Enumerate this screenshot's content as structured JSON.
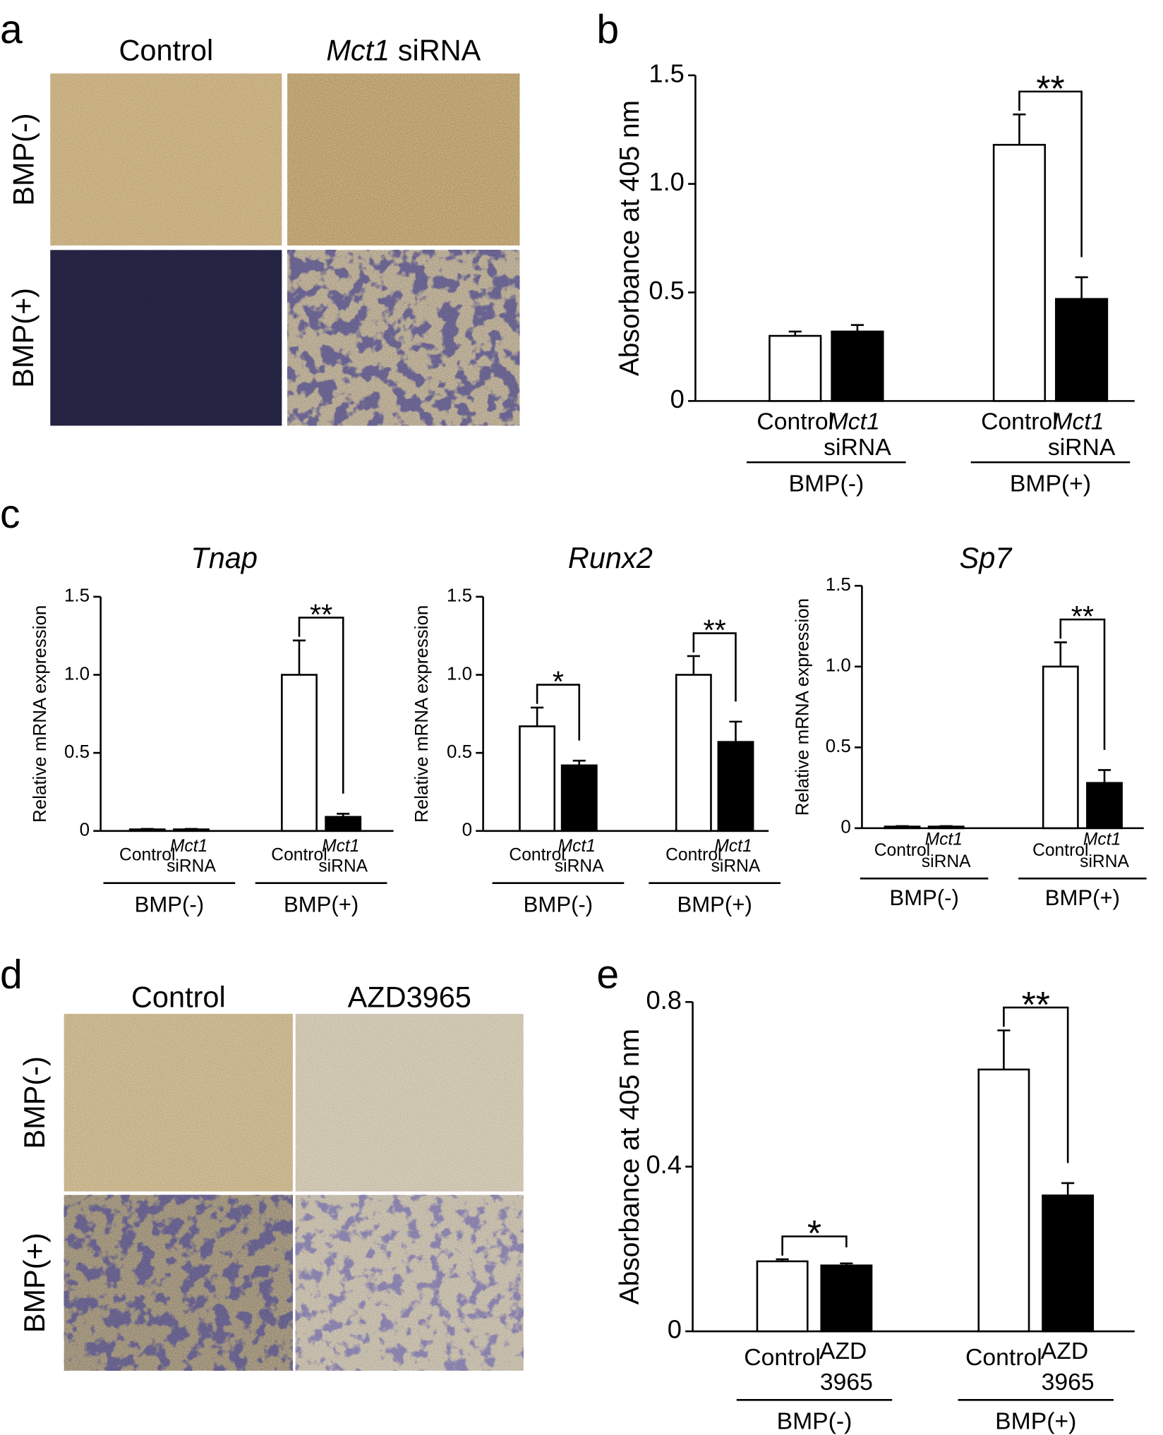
{
  "panel_labels": [
    "a",
    "b",
    "c",
    "d",
    "e"
  ],
  "image_a": {
    "columns": [
      "Control",
      "Mct1 siRNA"
    ],
    "rows": [
      "BMP(-)",
      "BMP(+)"
    ],
    "italic_first_word": [
      false,
      true
    ]
  },
  "image_d": {
    "columns": [
      "Control",
      "AZD3965"
    ],
    "rows": [
      "BMP(-)",
      "BMP(+)"
    ],
    "italic_first_word": [
      false,
      false
    ]
  },
  "chart_data": [
    {
      "type": "bar",
      "ylabel": "Absorbance at 405 nm",
      "categories": [
        "BMP(-)",
        "BMP(+)"
      ],
      "series": [
        {
          "name": "Control",
          "color": "#ffffff",
          "values": [
            0.3,
            1.18
          ],
          "errors": [
            0.02,
            0.14
          ]
        },
        {
          "name": "Mct1 siRNA",
          "color": "#000000",
          "values": [
            0.32,
            0.47
          ],
          "errors": [
            0.03,
            0.1
          ],
          "italic_first_word": true
        }
      ],
      "annotations": [
        null,
        "**"
      ],
      "ylim": [
        0,
        1.5
      ],
      "yticks": [
        0,
        0.5,
        {
          "value": 1,
          "label": "1.0"
        },
        1.5
      ]
    },
    {
      "type": "bar",
      "title": "Tnap",
      "ylabel": "Relative mRNA expression",
      "categories": [
        "BMP(-)",
        "BMP(+)"
      ],
      "series": [
        {
          "name": "Control",
          "color": "#ffffff",
          "values": [
            0.01,
            1.0
          ],
          "errors": [
            0.003,
            0.22
          ]
        },
        {
          "name": "Mct1 siRNA",
          "color": "#000000",
          "values": [
            0.01,
            0.09
          ],
          "errors": [
            0.003,
            0.02
          ],
          "italic_first_word": true
        }
      ],
      "annotations": [
        null,
        "**"
      ],
      "ylim": [
        0,
        1.5
      ],
      "yticks": [
        0,
        0.5,
        {
          "value": 1,
          "label": "1.0"
        },
        1.5
      ]
    },
    {
      "type": "bar",
      "title": "Runx2",
      "ylabel": "Relative mRNA expression",
      "categories": [
        "BMP(-)",
        "BMP(+)"
      ],
      "series": [
        {
          "name": "Control",
          "color": "#ffffff",
          "values": [
            0.67,
            1.0
          ],
          "errors": [
            0.12,
            0.12
          ]
        },
        {
          "name": "Mct1 siRNA",
          "color": "#000000",
          "values": [
            0.42,
            0.57
          ],
          "errors": [
            0.03,
            0.13
          ],
          "italic_first_word": true
        }
      ],
      "annotations": [
        "*",
        "**"
      ],
      "ylim": [
        0,
        1.5
      ],
      "yticks": [
        0,
        0.5,
        {
          "value": 1,
          "label": "1.0"
        },
        1.5
      ]
    },
    {
      "type": "bar",
      "title": "Sp7",
      "ylabel": "Relative mRNA expression",
      "categories": [
        "BMP(-)",
        "BMP(+)"
      ],
      "series": [
        {
          "name": "Control",
          "color": "#ffffff",
          "values": [
            0.01,
            1.0
          ],
          "errors": [
            0.003,
            0.15
          ]
        },
        {
          "name": "Mct1 siRNA",
          "color": "#000000",
          "values": [
            0.01,
            0.28
          ],
          "errors": [
            0.003,
            0.08
          ],
          "italic_first_word": true
        }
      ],
      "annotations": [
        null,
        "**"
      ],
      "ylim": [
        0,
        1.5
      ],
      "yticks": [
        0,
        0.5,
        {
          "value": 1,
          "label": "1.0"
        },
        1.5
      ]
    },
    {
      "type": "bar",
      "ylabel": "Absorbance at 405 nm",
      "categories": [
        "BMP(-)",
        "BMP(+)"
      ],
      "series": [
        {
          "name": "Control",
          "color": "#ffffff",
          "values": [
            0.17,
            0.636
          ],
          "errors": [
            0.005,
            0.095
          ]
        },
        {
          "name": "AZD 3965",
          "color": "#000000",
          "values": [
            0.16,
            0.33
          ],
          "errors": [
            0.005,
            0.03
          ]
        }
      ],
      "annotations": [
        "*",
        "**"
      ],
      "ylim": [
        0,
        0.8
      ],
      "yticks": [
        0,
        0.4,
        0.8
      ]
    }
  ]
}
